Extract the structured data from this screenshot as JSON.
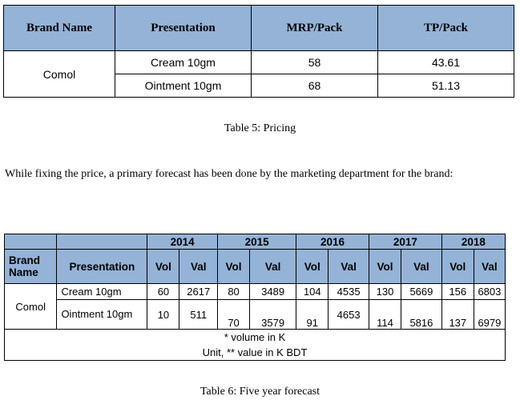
{
  "table5": {
    "headers": [
      "Brand Name",
      "Presentation",
      "MRP/Pack",
      "TP/Pack"
    ],
    "brand": "Comol",
    "rows": [
      {
        "presentation": "Cream 10gm",
        "mrp": "58",
        "tp": "43.61"
      },
      {
        "presentation": "Ointment 10gm",
        "mrp": "68",
        "tp": "51.13"
      }
    ],
    "caption": "Table 5: Pricing"
  },
  "paragraph": "While fixing the price, a primary forecast has been done by the marketing department for the brand:",
  "table6": {
    "years": [
      "2014",
      "2015",
      "2016",
      "2017",
      "2018"
    ],
    "brand_header": "Brand Name",
    "presentation_header": "Presentation",
    "vol_label": "Vol",
    "val_label": "Val",
    "brand": "Comol",
    "rows": [
      {
        "presentation": "Cream 10gm",
        "values": [
          "60",
          "2617",
          "80",
          "3489",
          "104",
          "4535",
          "130",
          "5669",
          "156",
          "6803"
        ]
      },
      {
        "presentation": "Ointment 10gm",
        "values": [
          "10",
          "511",
          "70",
          "3579",
          "91",
          "4653",
          "114",
          "5816",
          "137",
          "6979"
        ]
      }
    ],
    "footnote_line1": "* volume in K",
    "footnote_line2": "Unit, ** value in K BDT",
    "caption": "Table 6: Five year forecast"
  }
}
